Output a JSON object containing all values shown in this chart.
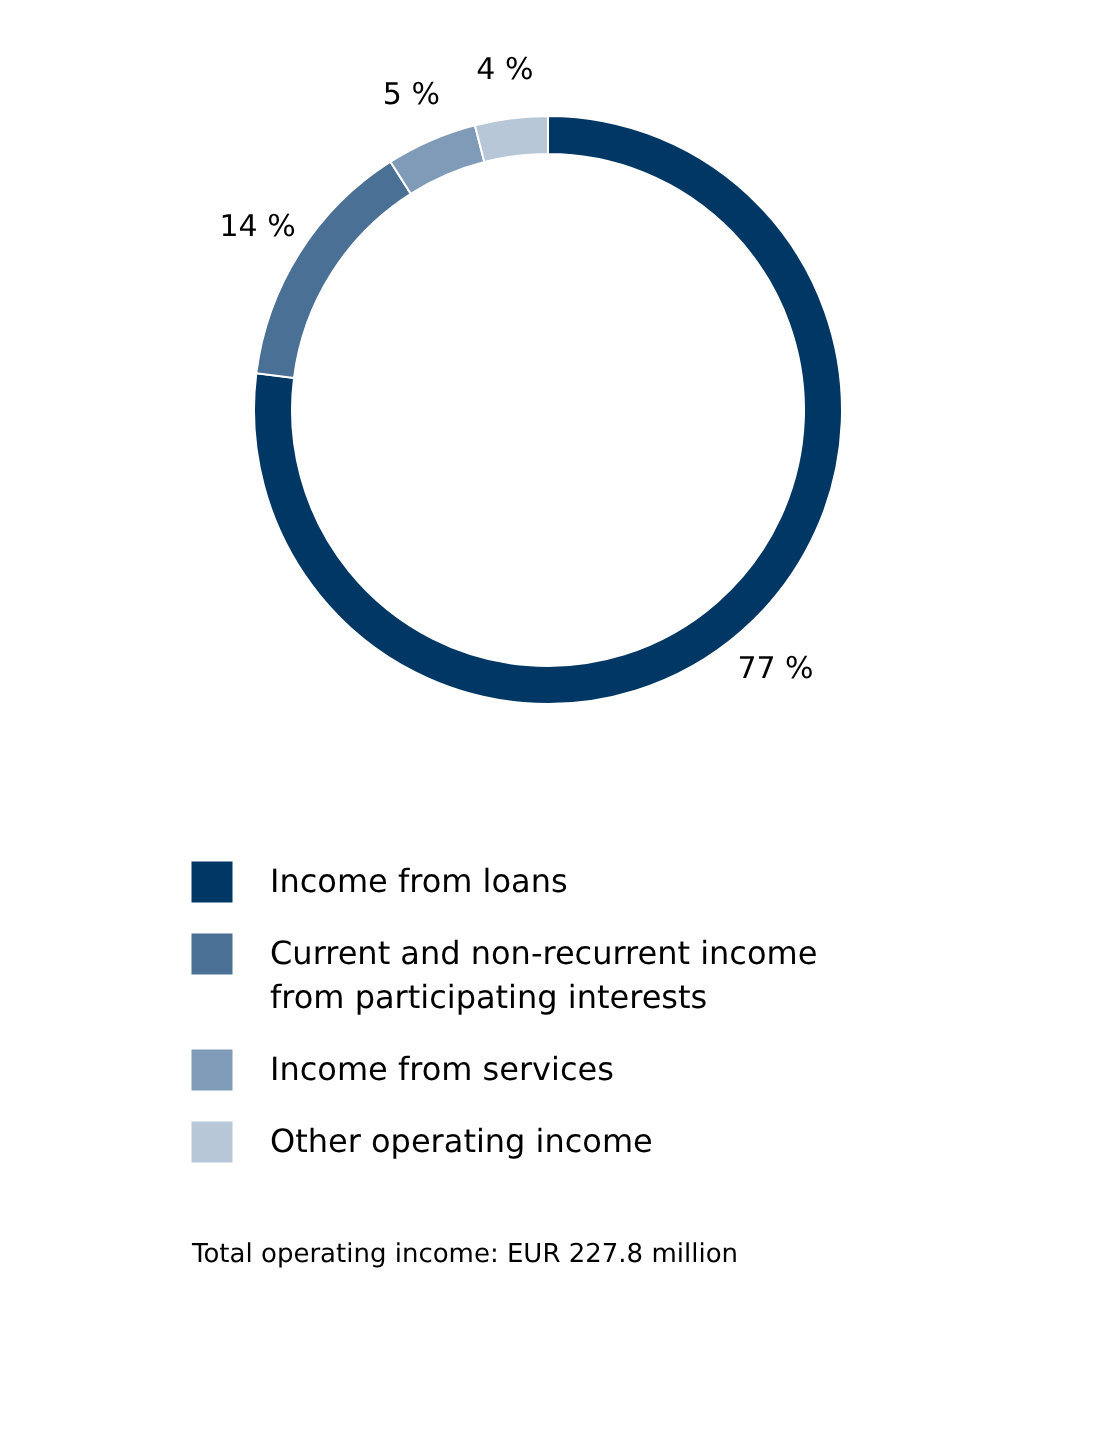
{
  "chart_data": {
    "type": "donut",
    "categories": [
      "Income from loans",
      "Current and non-recurrent income from participating interests",
      "Income from services",
      "Other operating income"
    ],
    "values": [
      77,
      14,
      5,
      4
    ],
    "value_labels": [
      "77 %",
      "14 %",
      "5 %",
      "4 %"
    ],
    "colors": [
      "#003764",
      "#4b7096",
      "#7f9bb7",
      "#b7c7d8"
    ],
    "legend": "bottom",
    "annotations": [
      "Total operating income: EUR 227.8 million"
    ]
  }
}
